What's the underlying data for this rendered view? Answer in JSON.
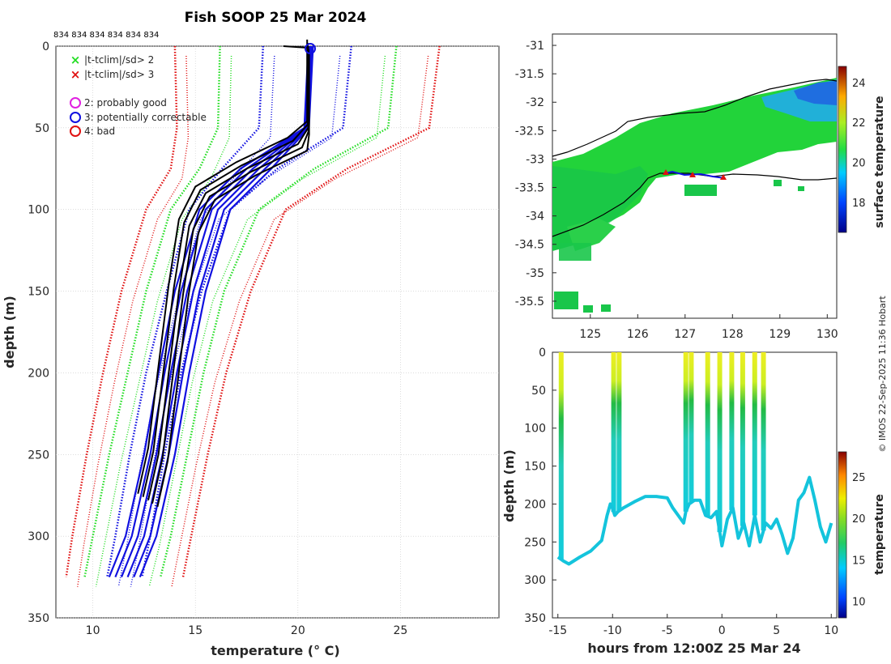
{
  "page": {
    "title": "Fish SOOP 25 Mar 2024",
    "credit": "© IMOS 22-Sep-2025 11:36 Hobart",
    "drop_ids": "834 834 834 834 834 834"
  },
  "colors": {
    "green": "#22dd22",
    "red": "#e01010",
    "blue": "#1010e0",
    "black": "#000000",
    "magenta": "#e020e0",
    "grid": "#c8c8c8",
    "axis": "#262626"
  },
  "legend": {
    "flag_sd2": "|t-tclim|/sd> 2",
    "flag_sd3": "|t-tclim|/sd> 3",
    "qc2": "2: probably good",
    "qc3": "3: potentially correctable",
    "qc4": "4: bad"
  },
  "chart_data": [
    {
      "id": "profile",
      "type": "line",
      "xlabel": "temperature (° C)",
      "ylabel": "depth (m)",
      "xlim": [
        8.2,
        29.8
      ],
      "ylim": [
        0,
        350
      ],
      "y_reversed": true,
      "xticks": [
        10,
        15,
        20,
        25
      ],
      "yticks": [
        0,
        50,
        100,
        150,
        200,
        250,
        300,
        350
      ],
      "grid": true,
      "climatology": {
        "depth": [
          0,
          50,
          75,
          100,
          150,
          200,
          250,
          300,
          325
        ],
        "red_left": [
          14.0,
          14.1,
          13.8,
          12.6,
          11.4,
          10.5,
          9.7,
          9.0,
          8.7
        ],
        "green_left": [
          16.2,
          16.1,
          15.2,
          13.8,
          12.6,
          11.7,
          10.8,
          10.0,
          9.6
        ],
        "blue_left": [
          18.3,
          18.1,
          16.3,
          14.7,
          13.6,
          12.6,
          11.8,
          11.1,
          10.7
        ],
        "blue_right": [
          22.6,
          22.2,
          19.0,
          16.7,
          15.3,
          14.3,
          13.5,
          12.8,
          12.4
        ],
        "green_right": [
          24.8,
          24.4,
          20.8,
          18.1,
          16.4,
          15.4,
          14.6,
          13.8,
          13.3
        ],
        "red_right": [
          26.9,
          26.4,
          22.4,
          19.4,
          17.7,
          16.5,
          15.6,
          14.8,
          14.4
        ]
      },
      "measured": {
        "black_depth": [
          0,
          50,
          60,
          75,
          90,
          110,
          150,
          200,
          250,
          278
        ],
        "black_temp": [
          20.5,
          20.5,
          20.0,
          17.5,
          15.5,
          14.7,
          14.2,
          13.7,
          13.2,
          12.7
        ],
        "blue_depth": [
          0,
          50,
          75,
          100,
          150,
          200,
          250,
          300,
          325
        ],
        "blue_temp": [
          20.6,
          20.4,
          17.8,
          15.8,
          14.6,
          13.8,
          13.1,
          12.2,
          11.4
        ]
      }
    },
    {
      "id": "map",
      "type": "heatmap",
      "xlim": [
        124.2,
        130.2
      ],
      "ylim": [
        -35.8,
        -30.8
      ],
      "xticks": [
        125,
        126,
        127,
        128,
        129,
        130
      ],
      "yticks": [
        -31,
        -31.5,
        -32,
        -32.5,
        -33,
        -33.5,
        -34,
        -34.5,
        -35,
        -35.5
      ],
      "colorbar_label": "surface temperature",
      "colorbar_range": [
        16.5,
        24.8
      ],
      "colorbar_ticks": [
        18,
        20,
        22,
        24
      ]
    },
    {
      "id": "section",
      "type": "scatter",
      "xlabel": "hours from 12:00Z 25 Mar 24",
      "ylabel": "depth (m)",
      "xlim": [
        -15.5,
        10.5
      ],
      "ylim": [
        0,
        350
      ],
      "y_reversed": true,
      "xticks": [
        -15,
        -10,
        -5,
        0,
        5,
        10
      ],
      "yticks": [
        0,
        50,
        100,
        150,
        200,
        250,
        300,
        350
      ],
      "bottom_hours": [
        -15,
        -14.5,
        -14,
        -13,
        -12,
        -11,
        -10.5,
        -10.2,
        -10,
        -9.8,
        -9.5,
        -9,
        -8,
        -7,
        -6,
        -5,
        -4.5,
        -4,
        -3.5,
        -3.3,
        -3,
        -2.5,
        -2,
        -1.5,
        -1,
        -0.5,
        0,
        0.5,
        1,
        1.5,
        2,
        2.5,
        3,
        3.5,
        4,
        4.5,
        5,
        5.5,
        6,
        6.5,
        7,
        7.5,
        8,
        8.5,
        9,
        9.5,
        10
      ],
      "bottom_depth": [
        270,
        275,
        279,
        270,
        262,
        248,
        215,
        200,
        206,
        215,
        210,
        205,
        197,
        190,
        190,
        192,
        205,
        215,
        225,
        210,
        200,
        195,
        195,
        215,
        218,
        210,
        255,
        220,
        205,
        245,
        225,
        255,
        215,
        250,
        225,
        232,
        220,
        240,
        265,
        245,
        195,
        185,
        165,
        195,
        230,
        250,
        225
      ],
      "drop_hours": [
        -14.7,
        -9.9,
        -9.4,
        -3.3,
        -2.8,
        -1.3,
        -0.2,
        0.9,
        1.9,
        3.0,
        3.8
      ],
      "colorbar_label": "temperature",
      "colorbar_range": [
        8,
        28
      ],
      "colorbar_ticks": [
        10,
        15,
        20,
        25
      ]
    }
  ]
}
